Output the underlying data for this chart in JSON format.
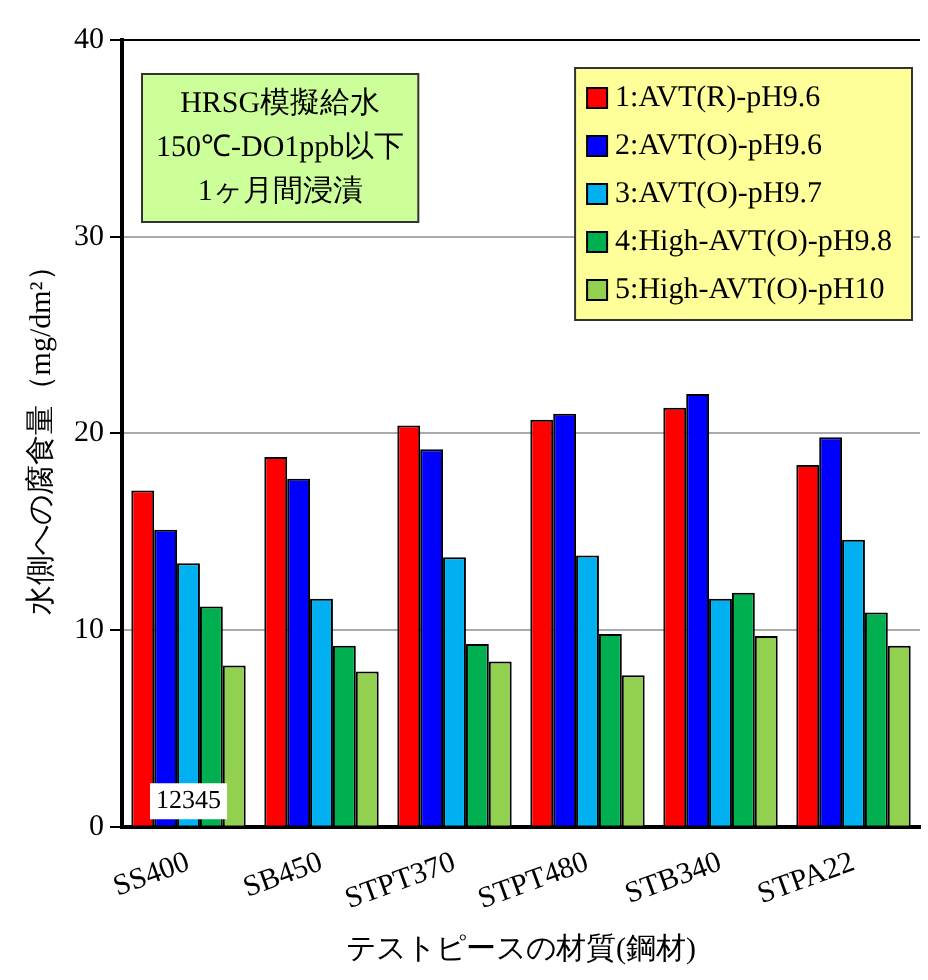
{
  "chart_data": {
    "type": "bar",
    "xlabel": "テストピースの材質(鋼材)",
    "ylabel": "水側への腐食量（mg/dm²）",
    "categories": [
      "SS400",
      "SB450",
      "STPT370",
      "STPT480",
      "STB340",
      "STPA22"
    ],
    "series": [
      {
        "name": "1:AVT(R)-pH9.6",
        "color": "#ff0000",
        "values": [
          17.1,
          18.8,
          20.4,
          20.7,
          21.3,
          18.4
        ]
      },
      {
        "name": "2:AVT(O)-pH9.6",
        "color": "#0000ff",
        "values": [
          15.1,
          17.7,
          19.2,
          21.0,
          22.0,
          19.8
        ]
      },
      {
        "name": "3:AVT(O)-pH9.7",
        "color": "#00b0f0",
        "values": [
          13.4,
          11.6,
          13.7,
          13.8,
          11.6,
          14.6
        ]
      },
      {
        "name": "4:High-AVT(O)-pH9.8",
        "color": "#00b050",
        "values": [
          11.2,
          9.2,
          9.3,
          9.8,
          11.9,
          10.9
        ]
      },
      {
        "name": "5:High-AVT(O)-pH10",
        "color": "#92d050",
        "values": [
          8.2,
          7.9,
          8.4,
          7.7,
          9.7,
          9.2
        ]
      }
    ],
    "ylim": [
      0,
      40
    ],
    "yticks": [
      0,
      10,
      20,
      30,
      40
    ],
    "grid": "y",
    "legend": "top right",
    "annotations": [
      "HRSG模擬給水\n150℃-DO1ppb以下\n1ヶ月間浸漬",
      {
        "text": "12345",
        "x": "SS400",
        "y": 1.3
      }
    ]
  }
}
